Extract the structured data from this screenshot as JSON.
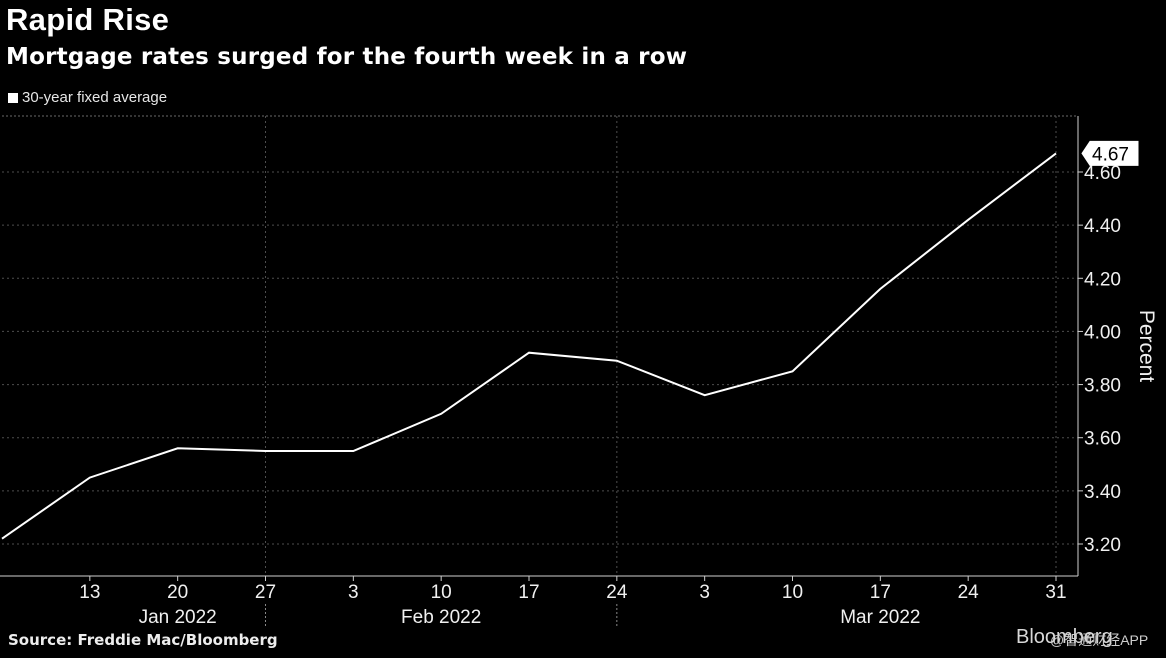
{
  "header": {
    "title": "Rapid Rise",
    "subtitle": "Mortgage rates surged for the fourth week in a row"
  },
  "legend": {
    "label": "30-year fixed average"
  },
  "footer": {
    "source": "Source: Freddie Mac/Bloomberg",
    "brand": "Bloomberg",
    "watermark": "@智通财经APP"
  },
  "colors": {
    "background": "#000000",
    "line": "#ffffff",
    "grid": "#555555"
  },
  "chart_data": {
    "type": "line",
    "title": "Rapid Rise",
    "subtitle": "Mortgage rates surged for the fourth week in a row",
    "ylabel": "Percent",
    "ylim": [
      3.1,
      4.85
    ],
    "yticks": [
      "3.20",
      "3.40",
      "3.60",
      "3.80",
      "4.00",
      "4.20",
      "4.40",
      "4.60"
    ],
    "xticks": [
      {
        "date": "2022-01-13",
        "label": "13"
      },
      {
        "date": "2022-01-20",
        "label": "20"
      },
      {
        "date": "2022-01-27",
        "label": "27"
      },
      {
        "date": "2022-02-03",
        "label": "3"
      },
      {
        "date": "2022-02-10",
        "label": "10"
      },
      {
        "date": "2022-02-17",
        "label": "17"
      },
      {
        "date": "2022-02-24",
        "label": "24"
      },
      {
        "date": "2022-03-03",
        "label": "3"
      },
      {
        "date": "2022-03-10",
        "label": "10"
      },
      {
        "date": "2022-03-17",
        "label": "17"
      },
      {
        "date": "2022-03-24",
        "label": "24"
      },
      {
        "date": "2022-03-31",
        "label": "31"
      }
    ],
    "month_labels": [
      {
        "label": "Jan 2022",
        "date": "2022-01-20"
      },
      {
        "label": "Feb 2022",
        "date": "2022-02-10"
      },
      {
        "label": "Mar 2022",
        "date": "2022-03-17"
      }
    ],
    "last_value_label": "4.67",
    "series": [
      {
        "name": "30-year fixed average",
        "x": [
          "2022-01-06",
          "2022-01-13",
          "2022-01-20",
          "2022-01-27",
          "2022-02-03",
          "2022-02-10",
          "2022-02-17",
          "2022-02-24",
          "2022-03-03",
          "2022-03-10",
          "2022-03-17",
          "2022-03-24",
          "2022-03-31"
        ],
        "values": [
          3.22,
          3.45,
          3.56,
          3.55,
          3.55,
          3.69,
          3.92,
          3.89,
          3.76,
          3.85,
          4.16,
          4.42,
          4.67
        ]
      }
    ],
    "grid": true,
    "legend_position": "top-left"
  }
}
